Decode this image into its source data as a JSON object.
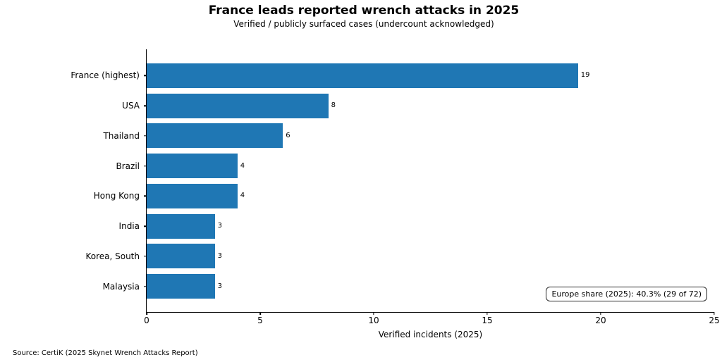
{
  "chart_data": {
    "type": "bar",
    "orientation": "horizontal",
    "title": "France leads reported wrench attacks in 2025",
    "subtitle": "Verified / publicly surfaced cases (undercount acknowledged)",
    "categories": [
      "France (highest)",
      "USA",
      "Thailand",
      "Brazil",
      "Hong Kong",
      "India",
      "Korea, South",
      "Malaysia"
    ],
    "values": [
      19,
      8,
      6,
      4,
      4,
      3,
      3,
      3
    ],
    "xlabel": "Verified incidents (2025)",
    "ylabel": "",
    "xlim": [
      0,
      25
    ],
    "xticks": [
      0,
      5,
      10,
      15,
      20,
      25
    ],
    "grid": false,
    "legend": null,
    "bar_color": "#1f77b4",
    "annotation": "Europe share (2025): 40.3% (29 of 72)"
  },
  "footer": {
    "source": "Source: CertiK (2025 Skynet Wrench Attacks Report)"
  }
}
